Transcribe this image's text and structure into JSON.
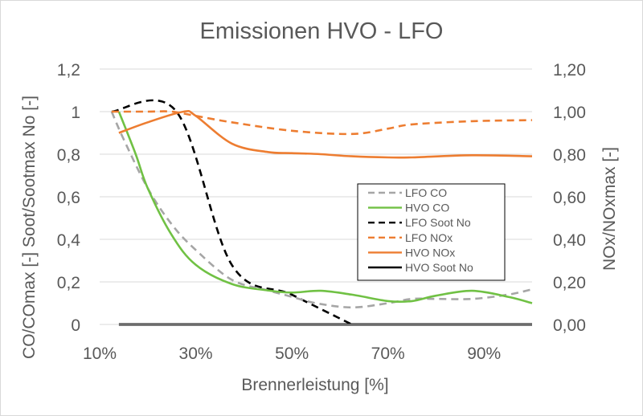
{
  "chart_data": {
    "type": "line",
    "title": "Emissionen HVO - LFO",
    "xlabel": "Brennerleistung [%]",
    "ylabel_left": "CO/COmax [-] Soot/Sootmax No [-]",
    "ylabel_right": "NOx/NOxmax [-]",
    "xlim": [
      10,
      100
    ],
    "ylim_left": [
      0,
      1.2
    ],
    "ylim_right": [
      0,
      1.2
    ],
    "x_ticks": [
      10,
      30,
      50,
      70,
      90
    ],
    "x_tick_labels": [
      "10%",
      "30%",
      "50%",
      "70%",
      "90%"
    ],
    "y_left_ticks": [
      0,
      0.2,
      0.4,
      0.6,
      0.8,
      1,
      1.2
    ],
    "y_left_tick_labels": [
      "0",
      "0,2",
      "0,4",
      "0,6",
      "0,8",
      "1",
      "1,2"
    ],
    "y_right_ticks": [
      0,
      0.2,
      0.4,
      0.6,
      0.8,
      1,
      1.2
    ],
    "y_right_tick_labels": [
      "0,00",
      "0,20",
      "0,40",
      "0,60",
      "0,80",
      "1,00",
      "1,20"
    ],
    "grid": "horizontal",
    "legend_position": "right",
    "series": [
      {
        "name": "LFO CO",
        "color": "#a6a6a6",
        "dash": "dashed",
        "axis": "left",
        "x": [
          12.5,
          15,
          20,
          25,
          30,
          37.5,
          45,
          50,
          55,
          62.5,
          70,
          75,
          80,
          87.5,
          95,
          100
        ],
        "y": [
          1.0,
          0.87,
          0.64,
          0.47,
          0.35,
          0.21,
          0.16,
          0.13,
          0.1,
          0.08,
          0.1,
          0.12,
          0.12,
          0.12,
          0.14,
          0.165
        ]
      },
      {
        "name": "HVO CO",
        "color": "#70c144",
        "dash": "solid",
        "axis": "left",
        "x": [
          14,
          17.5,
          20,
          25,
          30,
          37.5,
          45,
          50,
          56,
          62.5,
          70,
          75,
          80,
          87.5,
          95,
          100
        ],
        "y": [
          1.0,
          0.8,
          0.64,
          0.42,
          0.28,
          0.19,
          0.16,
          0.15,
          0.158,
          0.14,
          0.11,
          0.11,
          0.135,
          0.158,
          0.13,
          0.1
        ]
      },
      {
        "name": "LFO Soot No",
        "color": "#000000",
        "dash": "dashed",
        "axis": "left",
        "x": [
          12.5,
          26,
          37.5,
          50,
          62.5
        ],
        "y": [
          1.0,
          1.0,
          0.28,
          0.14,
          0.0
        ]
      },
      {
        "name": "LFO NOx",
        "color": "#ed7d31",
        "dash": "dashed",
        "axis": "right",
        "x": [
          12.5,
          20,
          25,
          30,
          37.5,
          50,
          62.5,
          70,
          75,
          87.5,
          100
        ],
        "y": [
          1.0,
          1.0,
          1.0,
          0.98,
          0.95,
          0.91,
          0.895,
          0.92,
          0.94,
          0.955,
          0.96
        ]
      },
      {
        "name": "HVO NOx",
        "color": "#ed7d31",
        "dash": "solid",
        "axis": "right",
        "x": [
          14,
          20,
          27.5,
          30,
          37.5,
          45,
          50,
          56,
          62.5,
          70,
          75,
          87.5,
          100
        ],
        "y": [
          0.9,
          0.95,
          1.0,
          0.98,
          0.85,
          0.81,
          0.805,
          0.8,
          0.79,
          0.785,
          0.785,
          0.795,
          0.79
        ]
      },
      {
        "name": "HVO Soot No",
        "color": "#000000",
        "dash": "solid",
        "axis": "left",
        "x": [
          14,
          100
        ],
        "y": [
          0.0,
          0.0
        ]
      }
    ]
  }
}
